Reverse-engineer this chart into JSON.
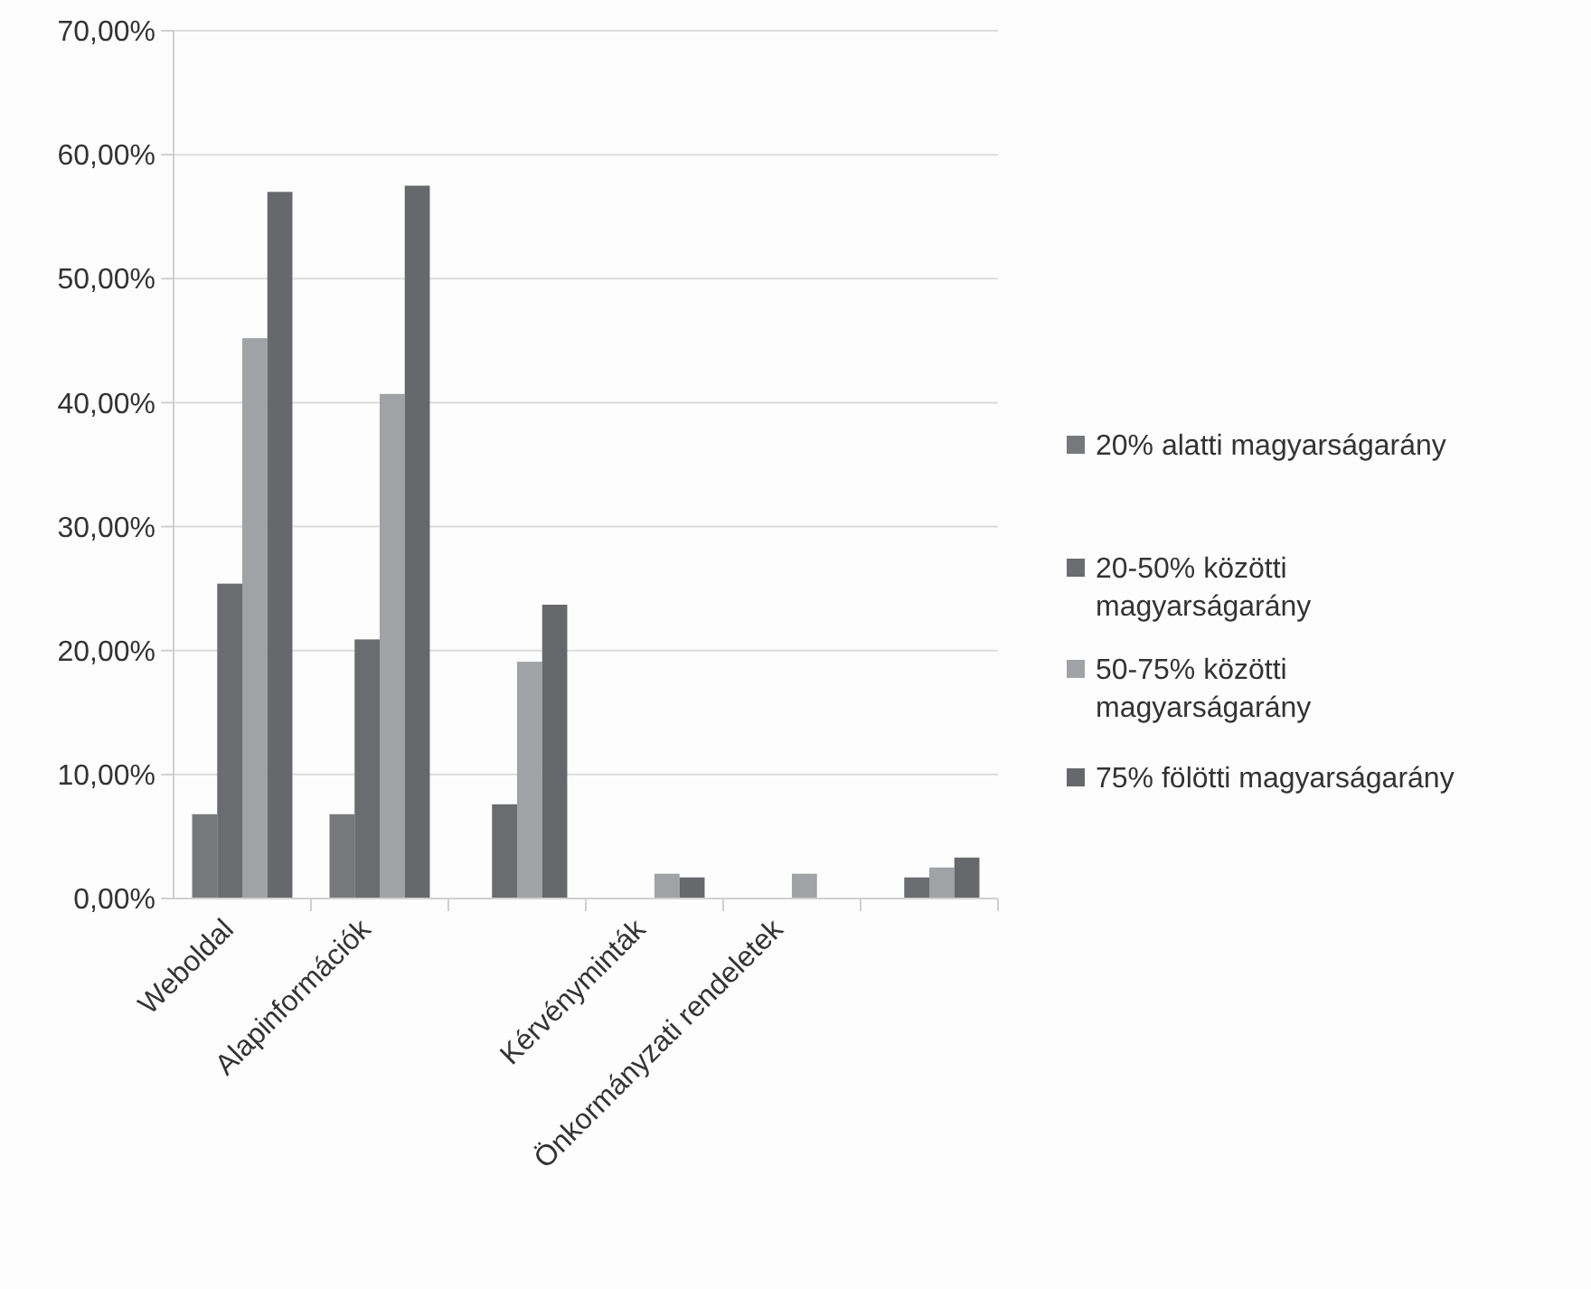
{
  "chart_data": {
    "type": "bar",
    "categories": [
      "Weboldal",
      "Alapinformációk",
      null,
      "Kérvényminták",
      "Önkormányzati rendeletek",
      null
    ],
    "series": [
      {
        "name": "20% alatti magyarságarány",
        "color": "#77787c",
        "values": [
          6.8,
          6.8,
          0,
          0,
          0,
          0
        ]
      },
      {
        "name": "20-50% közötti magyarságarány",
        "color": "#6b6c70",
        "values": [
          25.4,
          20.9,
          7.6,
          0,
          0,
          1.7
        ]
      },
      {
        "name": "50-75% közötti magyarságarány",
        "color": "#a0a2a5",
        "values": [
          45.2,
          40.7,
          19.1,
          2.0,
          2.0,
          2.5
        ]
      },
      {
        "name": "75% fölötti magyarságarány",
        "color": "#67686b",
        "values": [
          57.0,
          57.5,
          23.7,
          1.7,
          0,
          3.3
        ]
      }
    ],
    "ylim": [
      0,
      70
    ],
    "yticks": [
      {
        "value": 0,
        "label": "0,00%"
      },
      {
        "value": 10,
        "label": "10,00%"
      },
      {
        "value": 20,
        "label": "20,00%"
      },
      {
        "value": 30,
        "label": "30,00%"
      },
      {
        "value": 40,
        "label": "40,00%"
      },
      {
        "value": 50,
        "label": "50,00%"
      },
      {
        "value": 60,
        "label": "60,00%"
      },
      {
        "value": 70,
        "label": "70,00%"
      }
    ],
    "grid": "y",
    "legend": "right"
  }
}
